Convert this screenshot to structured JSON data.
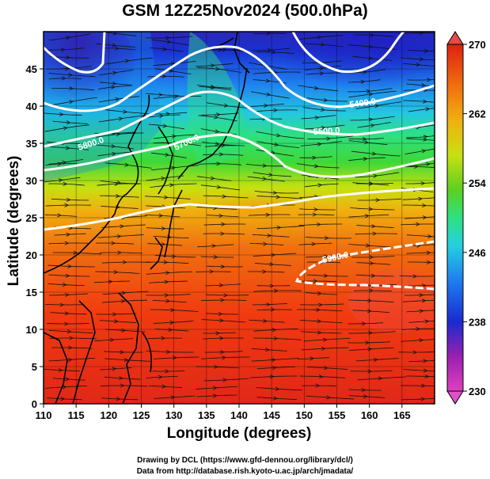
{
  "title": "GSM 12Z25Nov2024 (500.0hPa)",
  "x_axis": {
    "label": "Longitude (degrees)",
    "range": [
      110,
      170
    ],
    "ticks": [
      "110",
      "115",
      "120",
      "125",
      "130",
      "135",
      "140",
      "145",
      "150",
      "155",
      "160",
      "165"
    ]
  },
  "y_axis": {
    "label": "Latitude  (degrees)",
    "range": [
      0,
      50
    ],
    "ticks": [
      "0",
      "5",
      "10",
      "15",
      "20",
      "25",
      "30",
      "35",
      "40",
      "45"
    ]
  },
  "colorbar": {
    "range": [
      230,
      270
    ],
    "ticks": [
      "230",
      "238",
      "246",
      "254",
      "262",
      "270"
    ],
    "colors": [
      "#e040c0",
      "#7a1fb0",
      "#1a2ad0",
      "#1e7ff0",
      "#24d0e0",
      "#2ee080",
      "#5cd020",
      "#c8e010",
      "#f0c010",
      "#f07010",
      "#e02010"
    ]
  },
  "contours": [
    {
      "label": "5400.0"
    },
    {
      "label": "5500.0"
    },
    {
      "label": "5700.0"
    },
    {
      "label": "5800.0"
    },
    {
      "label": "5900.0"
    }
  ],
  "credits": {
    "line1": "Drawing by DCL (https://www.gfd-dennou.org/library/dcl/)",
    "line2": "Data from http://database.rish.kyoto-u.ac.jp/arch/jmadata/"
  }
}
